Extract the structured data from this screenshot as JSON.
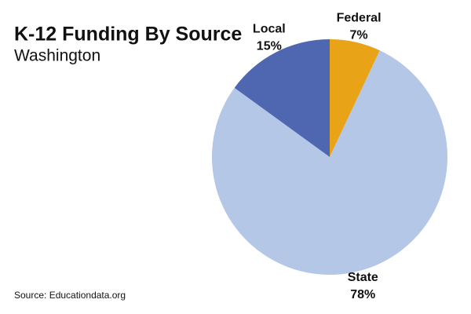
{
  "chart_data": {
    "type": "pie",
    "title": "K-12 Funding By Source",
    "subtitle": "Washington",
    "source": "Source: Educationdata.org",
    "categories": [
      "Federal",
      "State",
      "Local"
    ],
    "values": [
      7,
      78,
      15
    ],
    "value_labels": [
      "7%",
      "78%",
      "15%"
    ],
    "colors": [
      "#e8a317",
      "#b4c7e7",
      "#4f67b1"
    ]
  }
}
